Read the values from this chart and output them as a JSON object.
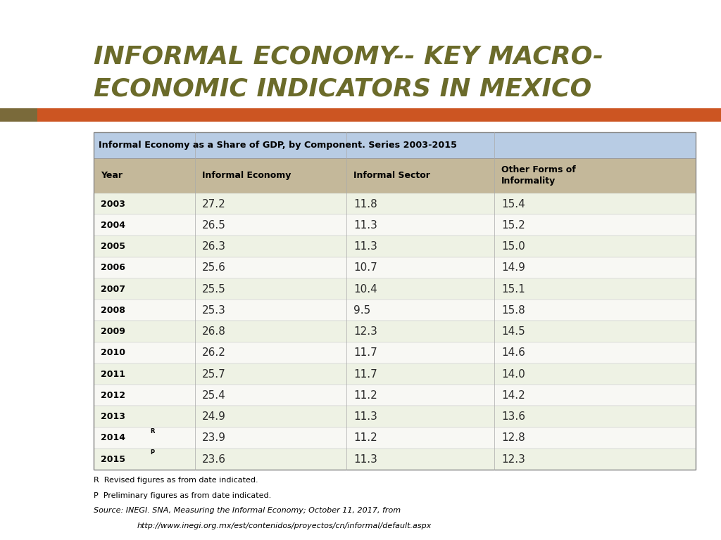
{
  "title_line1": "INFORMAL ECONOMY-- KEY MACRO-",
  "title_line2": "ECONOMIC INDICATORS IN MEXICO",
  "title_color": "#6b6b2a",
  "title_fontsize": 26,
  "title_fontstyle": "italic",
  "title_fontweight": "bold",
  "bar_left_color": "#7a6a3a",
  "bar_right_color": "#cc5522",
  "table_title": "Informal Economy as a Share of GDP, by Component. Series 2003-2015",
  "table_title_bg": "#b8cce4",
  "header_bg": "#c4b89a",
  "col_headers": [
    "Year",
    "Informal Economy",
    "Informal Sector",
    "Other Forms of\nInformality"
  ],
  "row_data": [
    [
      "2003",
      "27.2",
      "11.8",
      "15.4"
    ],
    [
      "2004",
      "26.5",
      "11.3",
      "15.2"
    ],
    [
      "2005",
      "26.3",
      "11.3",
      "15.0"
    ],
    [
      "2006",
      "25.6",
      "10.7",
      "14.9"
    ],
    [
      "2007",
      "25.5",
      "10.4",
      "15.1"
    ],
    [
      "2008",
      "25.3",
      "9.5",
      "15.8"
    ],
    [
      "2009",
      "26.8",
      "12.3",
      "14.5"
    ],
    [
      "2010",
      "26.2",
      "11.7",
      "14.6"
    ],
    [
      "2011",
      "25.7",
      "11.7",
      "14.0"
    ],
    [
      "2012",
      "25.4",
      "11.2",
      "14.2"
    ],
    [
      "2013",
      "24.9",
      "11.3",
      "13.6"
    ],
    [
      "2014",
      "23.9",
      "11.2",
      "12.8"
    ],
    [
      "2015",
      "23.6",
      "11.3",
      "12.3"
    ]
  ],
  "year_superscripts": [
    "",
    "",
    "",
    "",
    "",
    "",
    "",
    "",
    "",
    "",
    "",
    "R",
    "P"
  ],
  "year_labels": [
    "2003",
    "2004",
    "2005",
    "2006",
    "2007",
    "2008",
    "2009",
    "2010",
    "2011",
    "2012",
    "2013",
    "2014",
    "2015"
  ],
  "row_bg_odd": "#eef2e4",
  "row_bg_even": "#f8f8f4",
  "footnote_r": "R  Revised figures as from date indicated.",
  "footnote_p": "P  Preliminary figures as from date indicated.",
  "footnote_src1": "Source: INEGI. SNA, Measuring the Informal Economy; October 11, 2017, from",
  "footnote_src2": "        http://www.inegi.org.mx/est/contenidos/proyectos/cn/informal/default.aspx",
  "bg_color": "#ffffff"
}
